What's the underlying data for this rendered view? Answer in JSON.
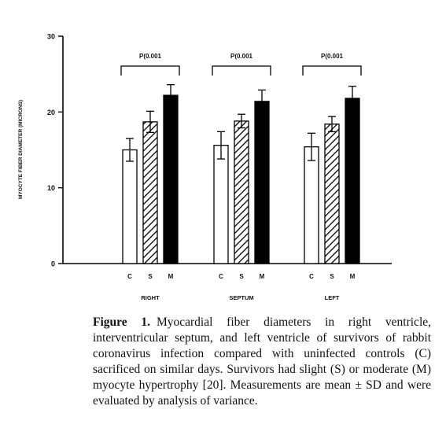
{
  "chart_data": {
    "type": "bar",
    "ylabel": "MYOCYTE FIBER DIAMETER (MICRONS)",
    "ylim": [
      0,
      30
    ],
    "yticks": [
      "0",
      "10",
      "20",
      "30"
    ],
    "categories": [
      "C",
      "S",
      "M"
    ],
    "groups": [
      {
        "name": "RIGHT",
        "pvalue": "P(0.001",
        "values": [
          15.0,
          18.7,
          22.2
        ],
        "errors": [
          1.5,
          1.4,
          1.4
        ]
      },
      {
        "name": "SEPTUM",
        "pvalue": "P(0.001",
        "values": [
          15.6,
          18.8,
          21.4
        ],
        "errors": [
          1.8,
          0.9,
          1.5
        ]
      },
      {
        "name": "LEFT",
        "pvalue": "P(0.001",
        "values": [
          15.4,
          18.4,
          21.8
        ],
        "errors": [
          1.8,
          1.0,
          1.6
        ]
      }
    ],
    "styles": [
      "white",
      "hatched",
      "black"
    ],
    "grid": false
  },
  "caption": {
    "label": "Figure 1.",
    "text": "Myocardial fiber diameters in right ventricle, interventricular septum, and left ventricle of survivors of rabbit coronavirus infection compared with uninfected controls (C) sacrificed on similar days. Survivors had slight (S) or moderate (M) myocyte hypertrophy [20]. Measurements are mean ± SD and were evaluated by analysis of variance."
  }
}
